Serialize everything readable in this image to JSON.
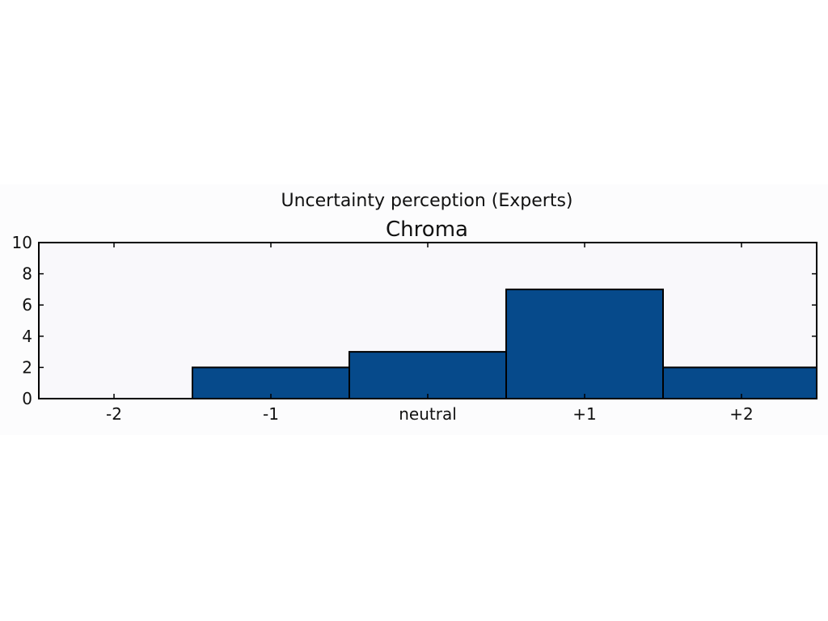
{
  "chart_data": {
    "type": "bar",
    "suptitle": "Uncertainty perception (Experts)",
    "title": "Chroma",
    "categories": [
      "-2",
      "-1",
      "neutral",
      "+1",
      "+2"
    ],
    "values": [
      0,
      2,
      3,
      7,
      2
    ],
    "ylim": [
      0,
      10
    ],
    "yticks": [
      "0",
      "2",
      "4",
      "6",
      "8",
      "10"
    ],
    "xlabel": "",
    "ylabel": "",
    "bar_color": "#064a8b",
    "edge_color": "#000000",
    "plot_background": "#f9f8fb",
    "figure_background": "#fcfcfd",
    "grid": false
  }
}
